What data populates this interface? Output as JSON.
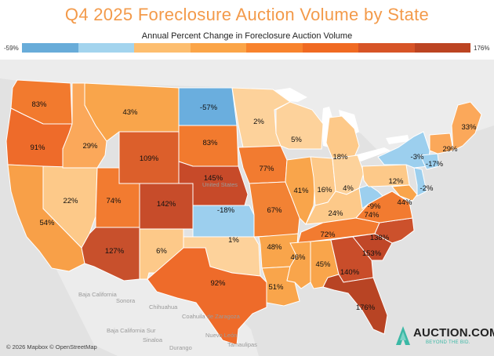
{
  "title": "Q4 2025 Foreclosure Auction Volume by State",
  "legend": {
    "title": "Annual Percent Change in Foreclosure Auction Volume",
    "min_label": "-59%",
    "max_label": "176%",
    "colors": [
      "#68acd9",
      "#a3d4ee",
      "#fdbe6f",
      "#fba548",
      "#f8832d",
      "#f06a22",
      "#d75427",
      "#bc4422"
    ]
  },
  "map": {
    "ocean_color": "#e2e2e2",
    "land_color": "#ececec",
    "lake_color": "#ffffff",
    "base_labels": [
      "Baja California",
      "Sonora",
      "Chihuahua",
      "Baja California Sur",
      "Coahuila de Zaragoza",
      "Nuevo León",
      "Sinaloa",
      "Durango",
      "Tamaulipas",
      "United States"
    ],
    "states": [
      {
        "name": "WA",
        "label": "83%",
        "fill": "#f27a2e"
      },
      {
        "name": "OR",
        "label": "91%",
        "fill": "#ee6b2a"
      },
      {
        "name": "CA",
        "label": "54%",
        "fill": "#f8a048"
      },
      {
        "name": "NV",
        "label": "22%",
        "fill": "#fdc989"
      },
      {
        "name": "ID",
        "label": "29%",
        "fill": "#fba85a"
      },
      {
        "name": "MT",
        "label": "43%",
        "fill": "#f9a54b"
      },
      {
        "name": "WY",
        "label": "109%",
        "fill": "#dc5f2b"
      },
      {
        "name": "UT",
        "label": "74%",
        "fill": "#f27b30"
      },
      {
        "name": "AZ",
        "label": "127%",
        "fill": "#c8502c"
      },
      {
        "name": "CO",
        "label": "142%",
        "fill": "#c74c2a"
      },
      {
        "name": "NM",
        "label": "6%",
        "fill": "#fdc989"
      },
      {
        "name": "ND",
        "label": "-57%",
        "fill": "#6aaede"
      },
      {
        "name": "SD",
        "label": "83%",
        "fill": "#f27a2e"
      },
      {
        "name": "NE",
        "label": "145%",
        "fill": "#c74a29"
      },
      {
        "name": "KS",
        "label": "-18%",
        "fill": "#9ccfee"
      },
      {
        "name": "OK",
        "label": "1%",
        "fill": "#fdd29b"
      },
      {
        "name": "TX",
        "label": "92%",
        "fill": "#ee6b2a"
      },
      {
        "name": "MN",
        "label": "2%",
        "fill": "#fdd29b"
      },
      {
        "name": "IA",
        "label": "77%",
        "fill": "#f27b30"
      },
      {
        "name": "MO",
        "label": "67%",
        "fill": "#f28234"
      },
      {
        "name": "AR",
        "label": "48%",
        "fill": "#f9a54b"
      },
      {
        "name": "LA",
        "label": "51%",
        "fill": "#f9a54b"
      },
      {
        "name": "WI",
        "label": "5%",
        "fill": "#fdd29b"
      },
      {
        "name": "IL",
        "label": "41%",
        "fill": "#f9a54b"
      },
      {
        "name": "MI",
        "label": "18%",
        "fill": "#fdc989"
      },
      {
        "name": "IN",
        "label": "16%",
        "fill": "#fdc989"
      },
      {
        "name": "OH",
        "label": "4%",
        "fill": "#fdd29b"
      },
      {
        "name": "KY",
        "label": "24%",
        "fill": "#fdc989"
      },
      {
        "name": "TN",
        "label": "72%",
        "fill": "#f27b30"
      },
      {
        "name": "MS",
        "label": "46%",
        "fill": "#f9a54b"
      },
      {
        "name": "AL",
        "label": "45%",
        "fill": "#f9a54b"
      },
      {
        "name": "GA",
        "label": "140%",
        "fill": "#c94d2a"
      },
      {
        "name": "FL",
        "label": "176%",
        "fill": "#b84424"
      },
      {
        "name": "SC",
        "label": "153%",
        "fill": "#c04728"
      },
      {
        "name": "NC",
        "label": "138%",
        "fill": "#cc512c"
      },
      {
        "name": "VA",
        "label": "74%",
        "fill": "#f27b30"
      },
      {
        "name": "WV",
        "label": "-9%",
        "fill": "#9ccfee"
      },
      {
        "name": "PA",
        "label": "12%",
        "fill": "#fdc989"
      },
      {
        "name": "NY",
        "label": "-3%",
        "fill": "#9ccfee"
      },
      {
        "name": "MD",
        "label": "44%",
        "fill": "#f9a54b"
      },
      {
        "name": "NJ",
        "label": "-2%",
        "fill": "#9ccfee"
      },
      {
        "name": "CT",
        "label": "-17%",
        "fill": "#9ccfee"
      },
      {
        "name": "VT",
        "label": "29%",
        "fill": "#fba85a"
      },
      {
        "name": "ME",
        "label": "33%",
        "fill": "#fba85a"
      }
    ]
  },
  "credit": "© 2026 Mapbox © OpenStreetMap",
  "logo": {
    "name": "AUCTION.COM",
    "tagline": "BEYOND THE BID."
  }
}
